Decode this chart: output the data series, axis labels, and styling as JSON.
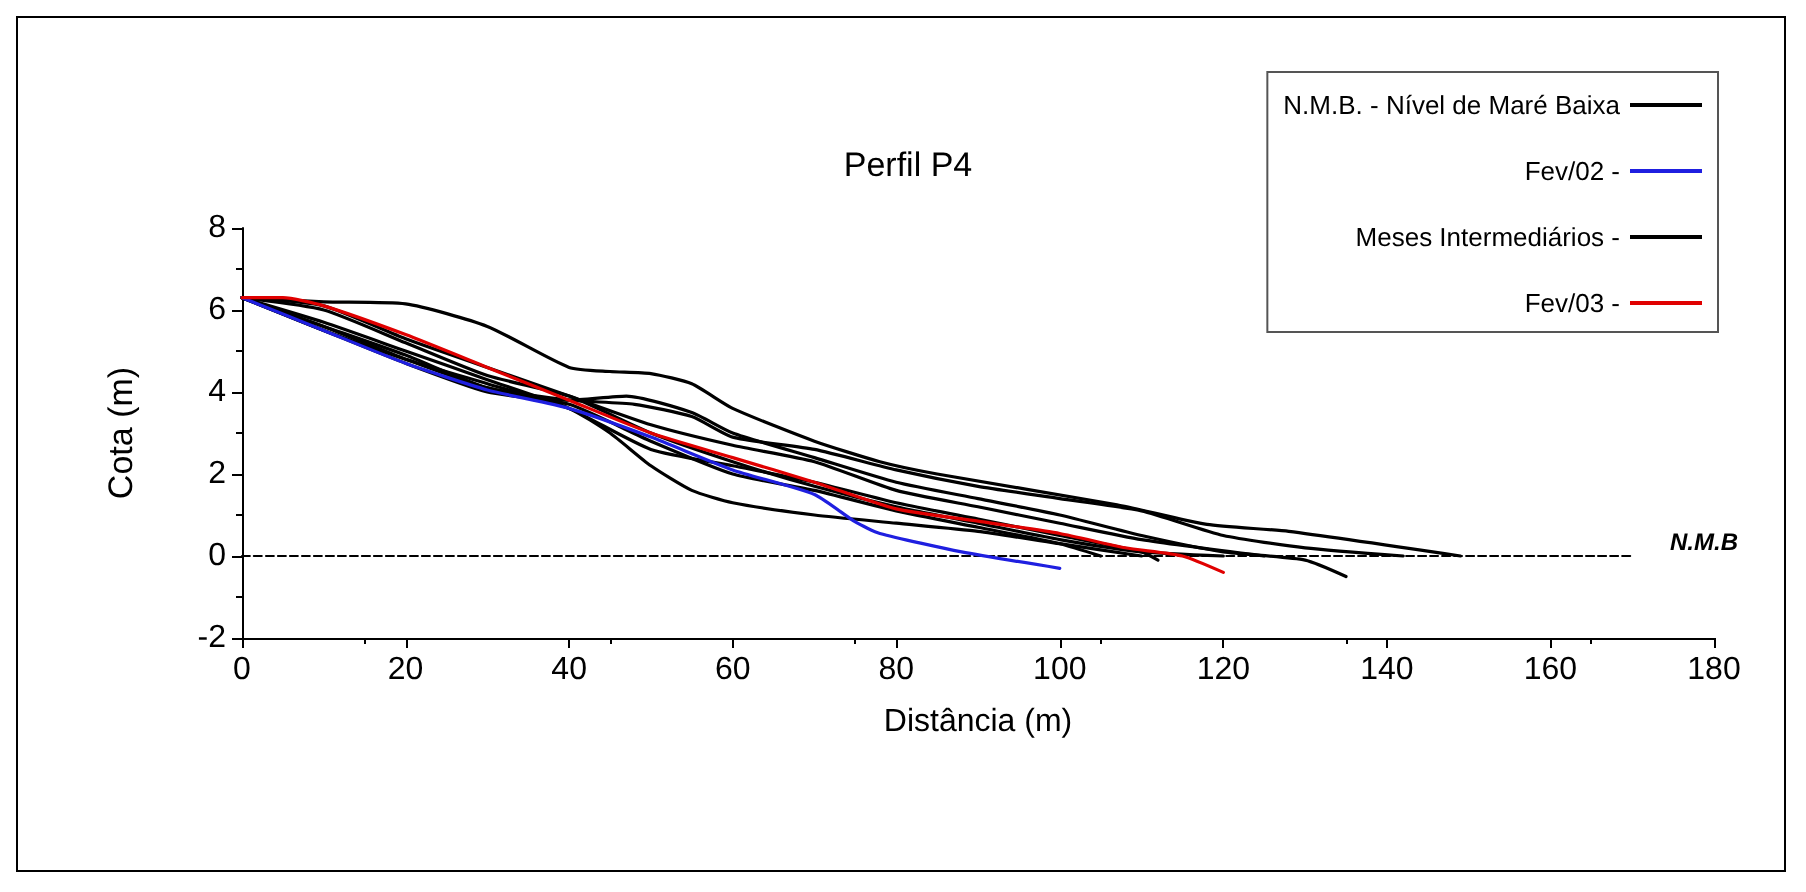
{
  "chart_data": {
    "type": "line",
    "title": "Perfil P4",
    "xlabel": "Distância (m)",
    "ylabel": "Cota (m)",
    "xlim": [
      0,
      180
    ],
    "xticks": [
      0,
      20,
      40,
      60,
      80,
      100,
      120,
      140,
      160,
      180
    ],
    "ylim": [
      -2,
      8
    ],
    "yticks": [
      -2,
      0,
      2,
      4,
      6,
      8
    ],
    "grid": false,
    "legend": "top right",
    "marker": "none",
    "annotations": [
      "N.M.B"
    ],
    "series": [
      {
        "name": "N.M.B. - Nível de Maré Baixa",
        "color": "#000000",
        "line_style": "dashed",
        "x": [
          0,
          170
        ],
        "values": [
          0,
          0
        ]
      },
      {
        "name": "Fev/02 -",
        "color": "#1f1fe0",
        "x": [
          0,
          10,
          20,
          30,
          40,
          50,
          60,
          70,
          75,
          78,
          88,
          100
        ],
        "values": [
          6.3,
          5.5,
          4.7,
          4.05,
          3.6,
          2.9,
          2.1,
          1.5,
          0.83,
          0.55,
          0.1,
          -0.3
        ]
      },
      {
        "name": "Meses Intermediários -",
        "color": "#000000",
        "x": [
          0,
          10,
          20,
          30,
          40,
          45,
          50,
          55,
          60,
          70,
          78,
          85,
          107,
          118,
          128,
          149
        ],
        "values": [
          6.3,
          6.2,
          6.15,
          5.6,
          4.6,
          4.5,
          4.45,
          4.2,
          3.6,
          2.8,
          2.3,
          2.0,
          1.25,
          0.77,
          0.6,
          0
        ]
      },
      {
        "color": "#000000",
        "x": [
          0,
          10,
          20,
          30,
          40,
          45,
          50,
          55,
          60,
          70,
          80,
          90,
          100,
          110
        ],
        "values": [
          6.3,
          5.5,
          4.8,
          4.2,
          3.6,
          3.0,
          2.2,
          1.6,
          1.3,
          1.0,
          0.8,
          0.6,
          0.3,
          0
        ]
      },
      {
        "color": "#000000",
        "x": [
          0,
          10,
          20,
          30,
          40,
          47,
          55,
          60,
          70,
          80,
          90,
          100,
          110,
          120,
          130,
          135
        ],
        "values": [
          6.3,
          5.6,
          4.9,
          4.1,
          3.8,
          3.9,
          3.5,
          3.0,
          2.4,
          1.8,
          1.4,
          1.0,
          0.5,
          0.1,
          -0.1,
          -0.5
        ]
      },
      {
        "color": "#000000",
        "x": [
          0,
          10,
          20,
          30,
          40,
          50,
          60,
          70,
          80,
          90,
          100,
          110,
          125
        ],
        "values": [
          6.3,
          6.1,
          5.3,
          4.6,
          3.9,
          3.2,
          2.7,
          2.3,
          1.6,
          1.2,
          0.8,
          0.4,
          0
        ]
      },
      {
        "color": "#000000",
        "x": [
          0,
          10,
          20,
          30,
          40,
          48,
          55,
          60,
          70,
          80,
          90,
          100,
          110,
          120,
          130,
          142
        ],
        "values": [
          6.3,
          5.6,
          4.8,
          4.1,
          3.8,
          3.7,
          3.4,
          2.9,
          2.6,
          2.1,
          1.7,
          1.4,
          1.1,
          0.5,
          0.2,
          0
        ]
      },
      {
        "color": "#000000",
        "x": [
          0,
          10,
          20,
          30,
          40,
          50,
          60,
          70,
          80,
          90,
          100,
          110,
          112
        ],
        "values": [
          6.3,
          5.7,
          5.0,
          4.3,
          3.6,
          2.6,
          2.2,
          1.8,
          1.3,
          0.9,
          0.5,
          0.1,
          -0.1
        ]
      },
      {
        "color": "#000000",
        "x": [
          0,
          10,
          20,
          30,
          40,
          50,
          60,
          70,
          80,
          90,
          100,
          110,
          120
        ],
        "values": [
          6.3,
          6.0,
          5.2,
          4.4,
          3.9,
          3.0,
          2.3,
          1.7,
          1.2,
          0.8,
          0.4,
          0.1,
          0
        ]
      },
      {
        "color": "#000000",
        "x": [
          0,
          10,
          20,
          30,
          40,
          50,
          60,
          70,
          80,
          90,
          100,
          105
        ],
        "values": [
          6.3,
          5.5,
          4.7,
          4.0,
          3.7,
          2.8,
          2.0,
          1.6,
          1.1,
          0.7,
          0.3,
          0
        ]
      },
      {
        "name": "Fev/03 -",
        "color": "#e00000",
        "x": [
          0,
          5,
          10,
          20,
          30,
          40,
          50,
          60,
          70,
          80,
          90,
          100,
          108,
          115,
          120
        ],
        "values": [
          6.3,
          6.3,
          6.1,
          5.4,
          4.6,
          3.8,
          3.0,
          2.4,
          1.8,
          1.15,
          0.85,
          0.55,
          0.2,
          0,
          -0.4
        ]
      }
    ]
  }
}
